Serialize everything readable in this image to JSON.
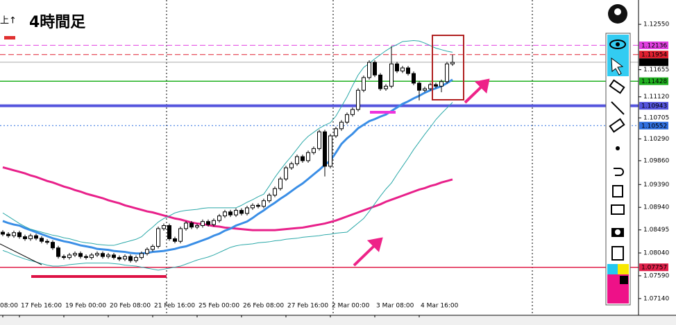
{
  "chart_data": {
    "type": "candlestick",
    "title": "4時間足",
    "corner_label": "上↑",
    "categories": [
      "08:00",
      null,
      null,
      "17 Feb 16:00",
      null,
      null,
      null,
      null,
      null,
      null,
      null,
      "19 Feb 00:00",
      null,
      null,
      null,
      null,
      null,
      null,
      null,
      "20 Feb 08:00",
      null,
      null,
      null,
      null,
      null,
      null,
      null,
      "21 Feb 16:00",
      null,
      null,
      null,
      null,
      null,
      null,
      null,
      "25 Feb 00:00",
      null,
      null,
      null,
      null,
      null,
      null,
      null,
      "26 Feb 08:00",
      null,
      null,
      null,
      null,
      null,
      null,
      null,
      "27 Feb 16:00",
      null,
      null,
      null,
      null,
      null,
      null,
      null,
      "2 Mar 00:00",
      null,
      null,
      null,
      null,
      null,
      null,
      null,
      "3 Mar 08:00",
      null,
      null,
      null,
      null,
      null,
      null,
      null,
      "4 Mar 16:00",
      null,
      null,
      null,
      null,
      null,
      null
    ],
    "open": [
      1.0845,
      1.0841,
      1.0838,
      1.0844,
      1.0836,
      1.0832,
      1.0838,
      1.0833,
      1.0827,
      1.0825,
      1.0814,
      1.0797,
      1.0795,
      1.08,
      1.0803,
      1.0797,
      1.0795,
      1.08,
      1.0803,
      1.0797,
      1.08,
      1.0795,
      1.0792,
      1.0797,
      1.0789,
      1.0795,
      1.0803,
      1.0811,
      1.0817,
      1.0852,
      1.0858,
      1.0832,
      1.0827,
      1.0852,
      1.0863,
      1.0855,
      1.0858,
      1.0866,
      1.086,
      1.0868,
      1.0877,
      1.0885,
      1.0879,
      1.0888,
      1.0882,
      1.0893,
      1.0898,
      1.0896,
      1.0907,
      1.0918,
      1.0931,
      1.095,
      1.0972,
      1.098,
      1.0994,
      1.0986,
      1.1002,
      1.101,
      1.1043,
      1.0975,
      1.1035,
      1.1049,
      1.1062,
      1.1077,
      1.1087,
      1.1125,
      1.115,
      1.118,
      1.1155,
      1.1128,
      1.1133,
      1.1177,
      1.1163,
      1.1169,
      1.1158,
      1.1139,
      1.1125,
      1.1128,
      1.1136,
      1.1133,
      1.1142,
      1.1177
    ],
    "high": [
      1.0849,
      1.0845,
      1.0848,
      1.0848,
      1.084,
      1.0842,
      1.0842,
      1.0837,
      1.0831,
      1.0829,
      1.0818,
      1.0801,
      1.0804,
      1.0807,
      1.0807,
      1.0801,
      1.0804,
      1.0807,
      1.0807,
      1.0804,
      1.0804,
      1.0799,
      1.0801,
      1.0801,
      1.0799,
      1.0807,
      1.0815,
      1.0821,
      1.0856,
      1.0862,
      1.0862,
      1.0836,
      1.0856,
      1.0867,
      1.0867,
      1.0862,
      1.087,
      1.087,
      1.0872,
      1.0881,
      1.0889,
      1.0889,
      1.0892,
      1.0892,
      1.0897,
      1.0902,
      1.0902,
      1.0911,
      1.0922,
      1.0935,
      1.0954,
      1.0976,
      1.0984,
      1.0998,
      1.0998,
      1.1006,
      1.1014,
      1.1047,
      1.1047,
      1.1039,
      1.1053,
      1.1066,
      1.1081,
      1.1091,
      1.1129,
      1.1154,
      1.1184,
      1.1184,
      1.1159,
      1.1137,
      1.1212,
      1.1181,
      1.1173,
      1.1173,
      1.1162,
      1.1143,
      1.1132,
      1.114,
      1.114,
      1.1146,
      1.1181,
      1.1195
    ],
    "low": [
      1.0837,
      1.0834,
      1.0834,
      1.0832,
      1.0828,
      1.0828,
      1.0829,
      1.0823,
      1.0821,
      1.081,
      1.0793,
      1.0791,
      1.0791,
      1.0796,
      1.0793,
      1.0791,
      1.0791,
      1.0796,
      1.0793,
      1.0793,
      1.0791,
      1.0788,
      1.0788,
      1.0785,
      1.0785,
      1.0791,
      1.0799,
      1.0807,
      1.0813,
      1.0848,
      1.0828,
      1.0823,
      1.0823,
      1.0848,
      1.0851,
      1.0851,
      1.0854,
      1.0856,
      1.0856,
      1.0864,
      1.0873,
      1.0875,
      1.0875,
      1.0878,
      1.0878,
      1.0889,
      1.0892,
      1.0892,
      1.0903,
      1.0914,
      1.0927,
      1.0946,
      1.0968,
      1.0976,
      1.0982,
      1.0982,
      1.0998,
      1.1006,
      1.0955,
      1.0971,
      1.1031,
      1.1045,
      1.1058,
      1.1073,
      1.1083,
      1.1121,
      1.1146,
      1.1151,
      1.1124,
      1.1124,
      1.1129,
      1.1159,
      1.1159,
      1.1154,
      1.1135,
      1.1105,
      1.1121,
      1.1124,
      1.1129,
      1.1121,
      1.1138,
      1.1173
    ],
    "close": [
      1.0841,
      1.0838,
      1.0844,
      1.0836,
      1.0832,
      1.0838,
      1.0833,
      1.0827,
      1.0825,
      1.0814,
      1.0797,
      1.0795,
      1.08,
      1.0803,
      1.0797,
      1.0795,
      1.08,
      1.0803,
      1.0797,
      1.08,
      1.0795,
      1.0792,
      1.0797,
      1.0789,
      1.0795,
      1.0803,
      1.0811,
      1.0817,
      1.0852,
      1.0858,
      1.0832,
      1.0827,
      1.0852,
      1.0863,
      1.0855,
      1.0858,
      1.0866,
      1.086,
      1.0868,
      1.0877,
      1.0885,
      1.0879,
      1.0888,
      1.0882,
      1.0893,
      1.0898,
      1.0896,
      1.0907,
      1.0918,
      1.0931,
      1.095,
      1.0972,
      1.098,
      1.0994,
      1.0986,
      1.1002,
      1.101,
      1.1043,
      1.0975,
      1.1035,
      1.1049,
      1.1062,
      1.1077,
      1.1087,
      1.1125,
      1.115,
      1.118,
      1.1155,
      1.1128,
      1.1133,
      1.1177,
      1.1163,
      1.1169,
      1.1158,
      1.1139,
      1.1125,
      1.1128,
      1.1136,
      1.1133,
      1.1142,
      1.1177,
      1.118
    ],
    "indicators": [
      {
        "color": "#e8208a",
        "width": 3,
        "values": [
          1.0973,
          1.097,
          1.0967,
          1.0964,
          1.0961,
          1.0957,
          1.0954,
          1.095,
          1.0946,
          1.0943,
          1.0939,
          1.0935,
          1.0932,
          1.0928,
          1.0925,
          1.0921,
          1.0918,
          1.0915,
          1.0912,
          1.0908,
          1.0905,
          1.0902,
          1.0898,
          1.0895,
          1.0892,
          1.0889,
          1.0886,
          1.0884,
          1.0881,
          1.0878,
          1.0875,
          1.0872,
          1.087,
          1.0867,
          1.0864,
          1.0862,
          1.0861,
          1.0859,
          1.0857,
          1.0856,
          1.0854,
          1.0853,
          1.0852,
          1.0851,
          1.085,
          1.0849,
          1.0849,
          1.0849,
          1.0849,
          1.0849,
          1.085,
          1.0851,
          1.0852,
          1.0853,
          1.0854,
          1.0856,
          1.0858,
          1.086,
          1.0862,
          1.0865,
          1.0868,
          1.0872,
          1.0876,
          1.088,
          1.0884,
          1.0888,
          1.0892,
          1.0896,
          1.09,
          1.0905,
          1.0909,
          1.0913,
          1.0917,
          1.0921,
          1.0925,
          1.0929,
          1.0932,
          1.0936,
          1.0939,
          1.0943,
          1.0946,
          1.0949
        ]
      },
      {
        "color": "#3a8ee6",
        "width": 3,
        "values": [
          1.0867,
          1.0863,
          1.086,
          1.0858,
          1.0853,
          1.0849,
          1.0845,
          1.0841,
          1.0837,
          1.0833,
          1.083,
          1.0827,
          1.0825,
          1.0822,
          1.0819,
          1.0817,
          1.0815,
          1.0812,
          1.0811,
          1.081,
          1.0808,
          1.0807,
          1.0806,
          1.0804,
          1.0803,
          1.0803,
          1.0804,
          1.0806,
          1.0807,
          1.0808,
          1.081,
          1.0812,
          1.0815,
          1.0817,
          1.0821,
          1.0825,
          1.0829,
          1.0833,
          1.0838,
          1.0842,
          1.0848,
          1.0852,
          1.0858,
          1.0862,
          1.0866,
          1.0873,
          1.0881,
          1.0888,
          1.0896,
          1.0903,
          1.0911,
          1.0918,
          1.0926,
          1.0934,
          1.0941,
          1.095,
          1.0959,
          1.0968,
          1.0978,
          1.0986,
          1.1002,
          1.1019,
          1.103,
          1.1039,
          1.105,
          1.1057,
          1.1064,
          1.1068,
          1.1073,
          1.1077,
          1.1084,
          1.1091,
          1.1098,
          1.1103,
          1.1109,
          1.1114,
          1.112,
          1.1125,
          1.1129,
          1.1133,
          1.1139,
          1.1146
        ]
      },
      {
        "color": "#2aa8a8",
        "width": 1,
        "values": [
          1.0883,
          1.0876,
          1.0869,
          1.0862,
          1.0856,
          1.0851,
          1.0848,
          1.0845,
          1.0842,
          1.0839,
          1.0837,
          1.0834,
          1.0832,
          1.0829,
          1.0826,
          1.0824,
          1.0823,
          1.0821,
          1.082,
          1.0819,
          1.0819,
          1.0822,
          1.0825,
          1.0828,
          1.0831,
          1.0836,
          1.0846,
          1.0855,
          1.0865,
          1.0872,
          1.0877,
          1.0883,
          1.0886,
          1.0888,
          1.0889,
          1.089,
          1.0892,
          1.0893,
          1.0893,
          1.0893,
          1.0893,
          1.0893,
          1.0893,
          1.0898,
          1.0904,
          1.0909,
          1.0915,
          1.092,
          1.0936,
          1.0953,
          1.0968,
          1.0982,
          1.0995,
          1.1009,
          1.1023,
          1.1034,
          1.1042,
          1.105,
          1.1056,
          1.1061,
          1.1074,
          1.1093,
          1.1112,
          1.1134,
          1.1155,
          1.117,
          1.1178,
          1.1187,
          1.1195,
          1.1203,
          1.121,
          1.1215,
          1.1221,
          1.1222,
          1.1223,
          1.1222,
          1.1218,
          1.1213,
          1.1208,
          1.1205,
          1.1202,
          1.12
        ]
      },
      {
        "color": "#2aa8a8",
        "width": 1,
        "values": [
          1.0809,
          1.0805,
          1.08,
          1.0796,
          1.0792,
          1.0789,
          1.0786,
          1.0783,
          1.078,
          1.0778,
          1.0778,
          1.0779,
          1.0781,
          1.0782,
          1.0783,
          1.0784,
          1.0784,
          1.0784,
          1.0784,
          1.0784,
          1.0783,
          1.0782,
          1.078,
          1.0779,
          1.0778,
          1.0776,
          1.0774,
          1.0772,
          1.077,
          1.0772,
          1.0774,
          1.0776,
          1.0778,
          1.0782,
          1.0786,
          1.079,
          1.0793,
          1.0796,
          1.08,
          1.0805,
          1.081,
          1.0815,
          1.0818,
          1.082,
          1.0821,
          1.0822,
          1.0824,
          1.0825,
          1.0826,
          1.0828,
          1.0829,
          1.0831,
          1.0832,
          1.0833,
          1.0835,
          1.0836,
          1.0837,
          1.0838,
          1.084,
          1.0841,
          1.0843,
          1.0844,
          1.0845,
          1.0854,
          1.0863,
          1.0872,
          1.0886,
          1.0901,
          1.0916,
          1.093,
          1.0942,
          1.0959,
          1.0975,
          1.0991,
          1.1008,
          1.1023,
          1.1038,
          1.1052,
          1.1067,
          1.1079,
          1.109,
          1.1101
        ]
      }
    ],
    "levels": [
      {
        "value": 1.12136,
        "color": "#e040e0",
        "style": "dashed"
      },
      {
        "value": 1.11954,
        "color": "#e02030",
        "style": "dashed"
      },
      {
        "value": 1.11803,
        "color": "#000000",
        "style": "current"
      },
      {
        "value": 1.11428,
        "color": "#20b020",
        "style": "solid"
      },
      {
        "value": 1.10943,
        "color": "#5555dd",
        "style": "thick"
      },
      {
        "value": 1.10552,
        "color": "#3070e0",
        "style": "dotted"
      },
      {
        "value": 1.07757,
        "color": "#e0204a",
        "style": "solid"
      }
    ],
    "ylim": [
      1.0681,
      1.1303
    ],
    "yticks": [
      {
        "value": 1.1255,
        "label": "1.12550"
      },
      1.11655,
      {
        "value": 1.1112,
        "label": "1.11120"
      },
      1.10705,
      {
        "value": 1.1029,
        "label": "1.10290"
      },
      {
        "value": 1.0986,
        "label": "1.09860"
      },
      {
        "value": 1.0939,
        "label": "1.09390"
      },
      {
        "value": 1.0894,
        "label": "1.08940"
      },
      1.08495,
      {
        "value": 1.0804,
        "label": "1.08040"
      },
      {
        "value": 1.0759,
        "label": "1.07590"
      },
      {
        "value": 1.0714,
        "label": "1.07140"
      }
    ],
    "bull_color": "#ffffff",
    "bear_color": "#000000"
  }
}
